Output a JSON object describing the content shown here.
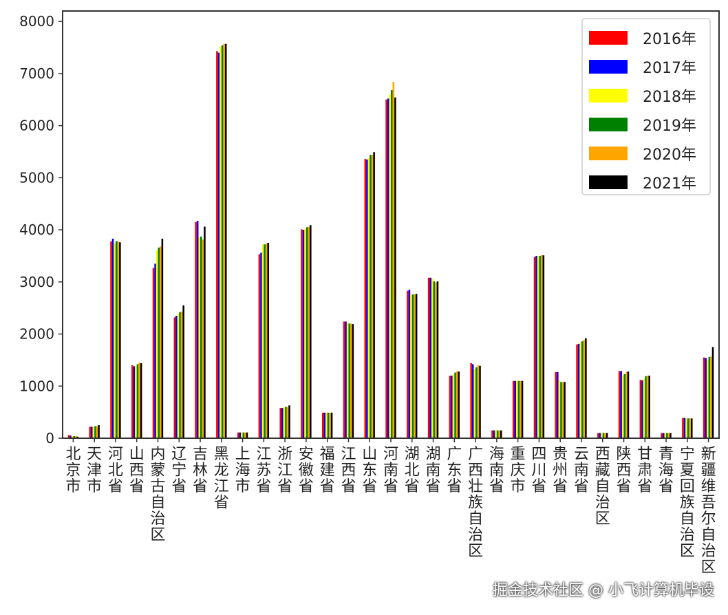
{
  "chart_data": {
    "type": "bar",
    "ylim": [
      0,
      8200
    ],
    "yticks": [
      0,
      1000,
      2000,
      3000,
      4000,
      5000,
      6000,
      7000,
      8000
    ],
    "grid": false,
    "legend_position": "top-right",
    "categories": [
      "北京市",
      "天津市",
      "河北省",
      "山西省",
      "内蒙古自治区",
      "辽宁省",
      "吉林省",
      "黑龙江省",
      "上海市",
      "江苏省",
      "浙江省",
      "安徽省",
      "福建省",
      "江西省",
      "山东省",
      "河南省",
      "湖北省",
      "湖南省",
      "广东省",
      "广西壮族自治区",
      "海南省",
      "重庆市",
      "四川省",
      "贵州省",
      "云南省",
      "西藏自治区",
      "陕西省",
      "甘肃省",
      "青海省",
      "宁夏回族自治区",
      "新疆维吾尔自治区"
    ],
    "series": [
      {
        "name": "2016年",
        "color": "#ff0000",
        "values": [
          60,
          220,
          3780,
          1400,
          3270,
          2320,
          4150,
          7430,
          110,
          3530,
          580,
          4010,
          490,
          2240,
          5360,
          6500,
          2830,
          3080,
          1200,
          1440,
          150,
          1100,
          3480,
          1270,
          1800,
          100,
          1290,
          1120,
          100,
          390,
          1550
        ]
      },
      {
        "name": "2017年",
        "color": "#0000ff",
        "values": [
          50,
          220,
          3830,
          1380,
          3350,
          2350,
          4170,
          7400,
          110,
          3560,
          580,
          4000,
          490,
          2240,
          5350,
          6520,
          2850,
          3080,
          1200,
          1420,
          150,
          1100,
          3500,
          1270,
          1810,
          100,
          1290,
          1110,
          100,
          390,
          1540
        ]
      },
      {
        "name": "2018年",
        "color": "#ffff00",
        "values": [
          40,
          220,
          3740,
          1390,
          3600,
          2380,
          3860,
          7520,
          110,
          3720,
          590,
          4020,
          490,
          2230,
          5370,
          6600,
          2750,
          3060,
          1220,
          1330,
          150,
          1100,
          3490,
          1120,
          1830,
          100,
          1200,
          1140,
          100,
          380,
          1500
        ]
      },
      {
        "name": "2019年",
        "color": "#008000",
        "values": [
          40,
          230,
          3780,
          1420,
          3660,
          2420,
          3870,
          7540,
          110,
          3720,
          600,
          4050,
          490,
          2200,
          5440,
          6680,
          2760,
          3010,
          1260,
          1360,
          150,
          1100,
          3500,
          1080,
          1860,
          100,
          1230,
          1190,
          100,
          380,
          1560
        ]
      },
      {
        "name": "2020年",
        "color": "#ffa500",
        "values": [
          40,
          230,
          3780,
          1450,
          3680,
          2430,
          3810,
          7570,
          110,
          3740,
          600,
          4060,
          490,
          2200,
          5440,
          6840,
          2760,
          2990,
          1280,
          1400,
          150,
          1100,
          3520,
          1080,
          1890,
          100,
          1270,
          1200,
          100,
          380,
          1570
        ]
      },
      {
        "name": "2021年",
        "color": "#000000",
        "values": [
          30,
          250,
          3760,
          1440,
          3830,
          2550,
          4060,
          7570,
          110,
          3750,
          630,
          4090,
          490,
          2190,
          5490,
          6540,
          2770,
          3010,
          1280,
          1390,
          150,
          1100,
          3510,
          1080,
          1920,
          100,
          1280,
          1200,
          100,
          380,
          1750
        ]
      }
    ]
  },
  "watermark": "掘金技术社区 @ 小飞计算机毕设"
}
